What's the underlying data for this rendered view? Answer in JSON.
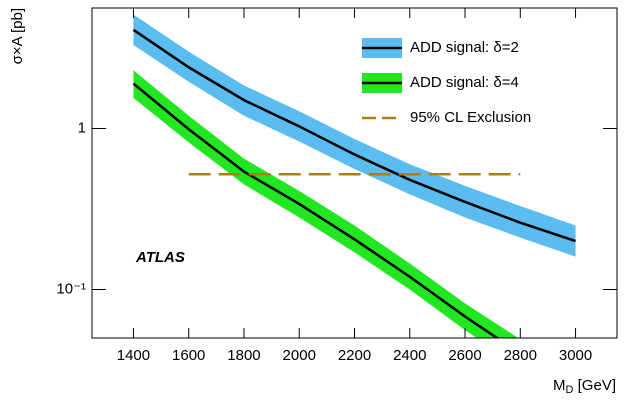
{
  "chart_data": {
    "type": "line",
    "x_label": {
      "main": "M",
      "sub": "D",
      "rest": " [GeV]"
    },
    "y_label": "σ×A [pb]",
    "annotation": "ATLAS",
    "x": [
      1400,
      1600,
      1800,
      2000,
      2200,
      2400,
      2600,
      2800,
      3000
    ],
    "series": [
      {
        "name": "ADD signal: δ=2",
        "color": "#000000",
        "band_color": "#5bbcf0",
        "values": [
          4.1,
          2.4,
          1.5,
          1.03,
          0.69,
          0.48,
          0.35,
          0.26,
          0.2
        ],
        "lower": [
          3.3,
          1.95,
          1.2,
          0.83,
          0.56,
          0.39,
          0.28,
          0.21,
          0.16
        ],
        "upper": [
          5.1,
          3.0,
          1.85,
          1.28,
          0.86,
          0.6,
          0.44,
          0.33,
          0.25
        ]
      },
      {
        "name": "ADD signal: δ=4",
        "color": "#000000",
        "band_color": "#22e622",
        "values": [
          1.9,
          0.99,
          0.54,
          0.34,
          0.205,
          0.12,
          0.068,
          0.04,
          null
        ],
        "lower": [
          1.55,
          0.82,
          0.45,
          0.28,
          0.17,
          0.1,
          0.056,
          0.033,
          null
        ],
        "upper": [
          2.3,
          1.2,
          0.65,
          0.41,
          0.25,
          0.145,
          0.082,
          0.049,
          null
        ]
      },
      {
        "name": "95% CL Exclusion",
        "color": "#b07d10",
        "dashed": true,
        "x": [
          1600,
          2800
        ],
        "values": [
          0.52,
          0.52
        ]
      }
    ],
    "xlim": [
      1250,
      3150
    ],
    "xticks": [
      1400,
      1600,
      1800,
      2000,
      2200,
      2400,
      2600,
      2800,
      3000
    ],
    "ylim": [
      0.05,
      5.6
    ],
    "yticks": [
      {
        "value": 0.1,
        "label": "10⁻¹"
      },
      1
    ],
    "log_y": true,
    "legend": "upper right"
  }
}
